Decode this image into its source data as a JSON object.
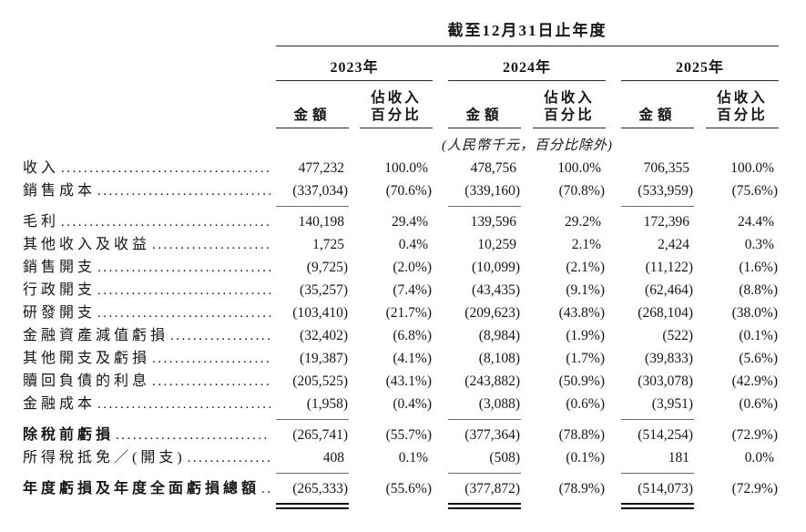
{
  "table": {
    "title": "截至12月31日止年度",
    "note": "(人民幣千元，百分比除外)",
    "year_groups": [
      {
        "year": "2023年",
        "amount_header": "金額",
        "pct_header_line1": "佔收入",
        "pct_header_line2": "百分比"
      },
      {
        "year": "2024年",
        "amount_header": "金額",
        "pct_header_line1": "佔收入",
        "pct_header_line2": "百分比"
      },
      {
        "year": "2025年",
        "amount_header": "金額",
        "pct_header_line1": "佔收入",
        "pct_header_line2": "百分比"
      }
    ],
    "rows": [
      {
        "label": "收入",
        "bold": false,
        "values": [
          "477,232",
          "100.0%",
          "478,756",
          "100.0%",
          "706,355",
          "100.0%"
        ],
        "rule_after": null
      },
      {
        "label": "銷售成本",
        "bold": false,
        "values": [
          "(337,034)",
          "(70.6%)",
          "(339,160)",
          "(70.8%)",
          "(533,959)",
          "(75.6%)"
        ],
        "rule_after": "single"
      },
      {
        "label": "毛利",
        "bold": false,
        "values": [
          "140,198",
          "29.4%",
          "139,596",
          "29.2%",
          "172,396",
          "24.4%"
        ],
        "rule_after": null
      },
      {
        "label": "其他收入及收益",
        "bold": false,
        "values": [
          "1,725",
          "0.4%",
          "10,259",
          "2.1%",
          "2,424",
          "0.3%"
        ],
        "rule_after": null
      },
      {
        "label": "銷售開支",
        "bold": false,
        "values": [
          "(9,725)",
          "(2.0%)",
          "(10,099)",
          "(2.1%)",
          "(11,122)",
          "(1.6%)"
        ],
        "rule_after": null
      },
      {
        "label": "行政開支",
        "bold": false,
        "values": [
          "(35,257)",
          "(7.4%)",
          "(43,435)",
          "(9.1%)",
          "(62,464)",
          "(8.8%)"
        ],
        "rule_after": null
      },
      {
        "label": "研發開支",
        "bold": false,
        "values": [
          "(103,410)",
          "(21.7%)",
          "(209,623)",
          "(43.8%)",
          "(268,104)",
          "(38.0%)"
        ],
        "rule_after": null
      },
      {
        "label": "金融資產減值虧損",
        "bold": false,
        "values": [
          "(32,402)",
          "(6.8%)",
          "(8,984)",
          "(1.9%)",
          "(522)",
          "(0.1%)"
        ],
        "rule_after": null
      },
      {
        "label": "其他開支及虧損",
        "bold": false,
        "values": [
          "(19,387)",
          "(4.1%)",
          "(8,108)",
          "(1.7%)",
          "(39,833)",
          "(5.6%)"
        ],
        "rule_after": null
      },
      {
        "label": "贖回負債的利息",
        "bold": false,
        "values": [
          "(205,525)",
          "(43.1%)",
          "(243,882)",
          "(50.9%)",
          "(303,078)",
          "(42.9%)"
        ],
        "rule_after": null
      },
      {
        "label": "金融成本",
        "bold": false,
        "values": [
          "(1,958)",
          "(0.4%)",
          "(3,088)",
          "(0.6%)",
          "(3,951)",
          "(0.6%)"
        ],
        "rule_after": "single"
      },
      {
        "label": "除稅前虧損",
        "bold": true,
        "values": [
          "(265,741)",
          "(55.7%)",
          "(377,364)",
          "(78.8%)",
          "(514,254)",
          "(72.9%)"
        ],
        "rule_after": null
      },
      {
        "label": "所得稅抵免／(開支)",
        "bold": false,
        "values": [
          "408",
          "0.1%",
          "(508)",
          "(0.1%)",
          "181",
          "0.0%"
        ],
        "rule_after": "single"
      },
      {
        "label": "年度虧損及年度全面虧損總額",
        "bold": true,
        "values": [
          "(265,333)",
          "(55.6%)",
          "(377,872)",
          "(78.9%)",
          "(514,073)",
          "(72.9%)"
        ],
        "rule_after": "double"
      }
    ]
  }
}
